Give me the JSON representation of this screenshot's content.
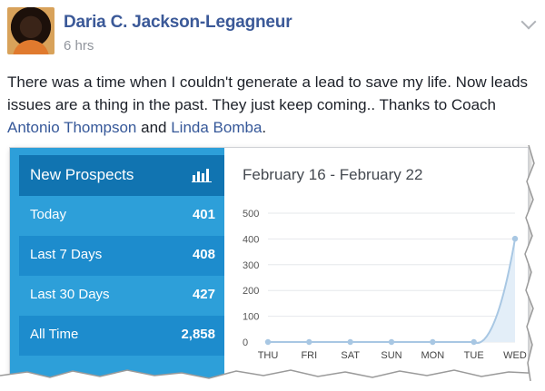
{
  "post": {
    "author": "Daria C. Jackson-Legagneur",
    "time": "6 hrs",
    "text_before": "There was a time when I couldn't generate a lead to save my life. Now leads issues are a thing in the past. They just keep coming.. Thanks to Coach ",
    "link1": "Antonio Thompson",
    "text_mid": " and ",
    "link2": "Linda Bomba",
    "text_end": "."
  },
  "panel": {
    "title": "New Prospects",
    "icon": "bar-chart-icon",
    "rows": [
      {
        "label": "Today",
        "value": "401"
      },
      {
        "label": "Last 7 Days",
        "value": "408"
      },
      {
        "label": "Last 30 Days",
        "value": "427"
      },
      {
        "label": "All Time",
        "value": "2,858"
      }
    ]
  },
  "chart_data": {
    "type": "line",
    "title": "February 16 - February 22",
    "categories": [
      "THU",
      "FRI",
      "SAT",
      "SUN",
      "MON",
      "TUE",
      "WED"
    ],
    "values": [
      0,
      0,
      0,
      0,
      0,
      0,
      401
    ],
    "yticks": [
      "0",
      "100",
      "200",
      "300",
      "400",
      "500"
    ],
    "ylim": [
      0,
      500
    ],
    "grid": true,
    "color": "#a8c7e3"
  }
}
